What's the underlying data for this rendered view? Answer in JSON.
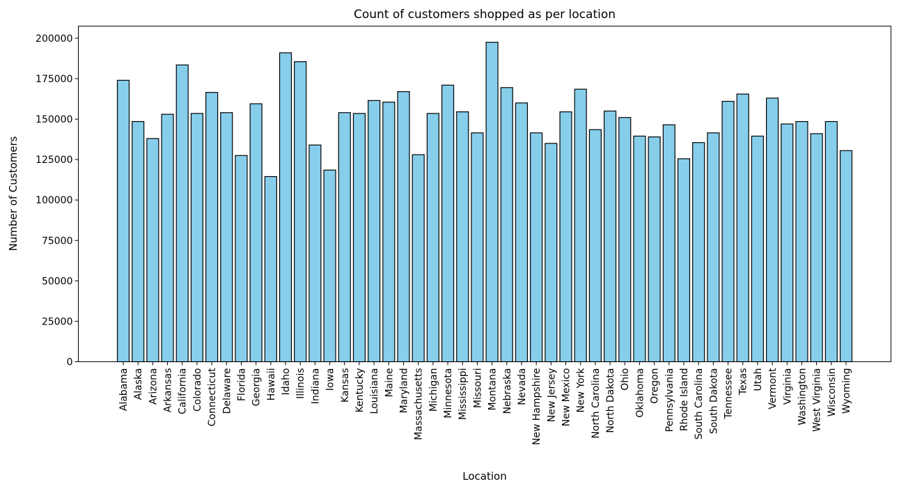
{
  "chart_data": {
    "type": "bar",
    "title": "Count of customers shopped as per location",
    "xlabel": "Location",
    "ylabel": "Number of Customers",
    "ylim": [
      0,
      207500
    ],
    "yticks": [
      0,
      25000,
      50000,
      75000,
      100000,
      125000,
      150000,
      175000,
      200000
    ],
    "grid": false,
    "bar_color": "#87ceeb",
    "edge_color": "#000000",
    "categories": [
      "Alabama",
      "Alaska",
      "Arizona",
      "Arkansas",
      "California",
      "Colorado",
      "Connecticut",
      "Delaware",
      "Florida",
      "Georgia",
      "Hawaii",
      "Idaho",
      "Illinois",
      "Indiana",
      "Iowa",
      "Kansas",
      "Kentucky",
      "Louisiana",
      "Maine",
      "Maryland",
      "Massachusetts",
      "Michigan",
      "Minnesota",
      "Mississippi",
      "Missouri",
      "Montana",
      "Nebraska",
      "Nevada",
      "New Hampshire",
      "New Jersey",
      "New Mexico",
      "New York",
      "North Carolina",
      "North Dakota",
      "Ohio",
      "Oklahoma",
      "Oregon",
      "Pennsylvania",
      "Rhode Island",
      "South Carolina",
      "South Dakota",
      "Tennessee",
      "Texas",
      "Utah",
      "Vermont",
      "Virginia",
      "Washington",
      "West Virginia",
      "Wisconsin",
      "Wyoming"
    ],
    "values": [
      174000,
      148500,
      138000,
      153000,
      183500,
      153500,
      166500,
      154000,
      127500,
      159500,
      114500,
      191000,
      185500,
      134000,
      118500,
      154000,
      153500,
      161500,
      160500,
      167000,
      128000,
      153500,
      171000,
      154500,
      141500,
      197500,
      169500,
      160000,
      141500,
      135000,
      154500,
      168500,
      143500,
      155000,
      151000,
      139500,
      139000,
      146500,
      125500,
      135500,
      141500,
      161000,
      165500,
      139500,
      163000,
      147000,
      148500,
      141000,
      148500,
      130500
    ]
  }
}
